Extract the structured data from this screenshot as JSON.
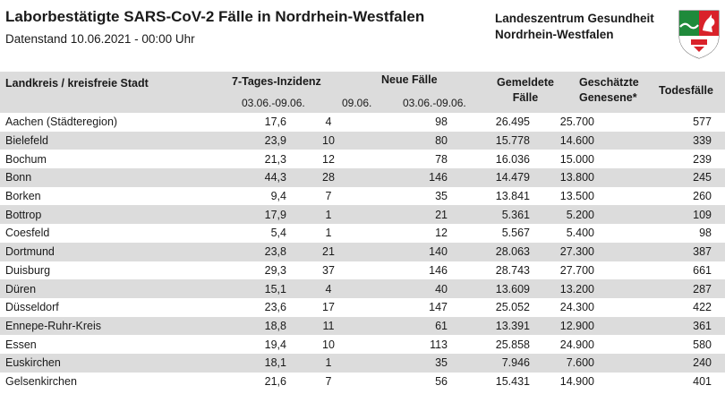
{
  "header": {
    "title": "Laborbestätigte SARS-CoV-2 Fälle in Nordrhein-Westfalen",
    "subtitle": "Datenstand 10.06.2021 - 00:00 Uhr",
    "org_line1": "Landeszentrum Gesundheit",
    "org_line2": "Nordrhein-Westfalen"
  },
  "table": {
    "columns": {
      "district": "Landkreis / kreisfreie Stadt",
      "incidence": "7-Tages-Inzidenz",
      "new_cases": "Neue Fälle",
      "reported_1": "Gemeldete",
      "reported_2": "Fälle",
      "recovered_1": "Geschätzte",
      "recovered_2": "Genesene*",
      "deaths": "Todesfälle"
    },
    "subheaders": {
      "incidence_period": "03.06.-09.06.",
      "new_day": "09.06.",
      "new_period": "03.06.-09.06."
    },
    "rows": [
      {
        "name": "Aachen (Städteregion)",
        "incidence": "17,6",
        "new_day": "4",
        "new_week": "98",
        "reported": "26.495",
        "recovered": "25.700",
        "deaths": "577"
      },
      {
        "name": "Bielefeld",
        "incidence": "23,9",
        "new_day": "10",
        "new_week": "80",
        "reported": "15.778",
        "recovered": "14.600",
        "deaths": "339"
      },
      {
        "name": "Bochum",
        "incidence": "21,3",
        "new_day": "12",
        "new_week": "78",
        "reported": "16.036",
        "recovered": "15.000",
        "deaths": "239"
      },
      {
        "name": "Bonn",
        "incidence": "44,3",
        "new_day": "28",
        "new_week": "146",
        "reported": "14.479",
        "recovered": "13.800",
        "deaths": "245"
      },
      {
        "name": "Borken",
        "incidence": "9,4",
        "new_day": "7",
        "new_week": "35",
        "reported": "13.841",
        "recovered": "13.500",
        "deaths": "260"
      },
      {
        "name": "Bottrop",
        "incidence": "17,9",
        "new_day": "1",
        "new_week": "21",
        "reported": "5.361",
        "recovered": "5.200",
        "deaths": "109"
      },
      {
        "name": "Coesfeld",
        "incidence": "5,4",
        "new_day": "1",
        "new_week": "12",
        "reported": "5.567",
        "recovered": "5.400",
        "deaths": "98"
      },
      {
        "name": "Dortmund",
        "incidence": "23,8",
        "new_day": "21",
        "new_week": "140",
        "reported": "28.063",
        "recovered": "27.300",
        "deaths": "387"
      },
      {
        "name": "Duisburg",
        "incidence": "29,3",
        "new_day": "37",
        "new_week": "146",
        "reported": "28.743",
        "recovered": "27.700",
        "deaths": "661"
      },
      {
        "name": "Düren",
        "incidence": "15,1",
        "new_day": "4",
        "new_week": "40",
        "reported": "13.609",
        "recovered": "13.200",
        "deaths": "287"
      },
      {
        "name": "Düsseldorf",
        "incidence": "23,6",
        "new_day": "17",
        "new_week": "147",
        "reported": "25.052",
        "recovered": "24.300",
        "deaths": "422"
      },
      {
        "name": "Ennepe-Ruhr-Kreis",
        "incidence": "18,8",
        "new_day": "11",
        "new_week": "61",
        "reported": "13.391",
        "recovered": "12.900",
        "deaths": "361"
      },
      {
        "name": "Essen",
        "incidence": "19,4",
        "new_day": "10",
        "new_week": "113",
        "reported": "25.858",
        "recovered": "24.900",
        "deaths": "580"
      },
      {
        "name": "Euskirchen",
        "incidence": "18,1",
        "new_day": "1",
        "new_week": "35",
        "reported": "7.946",
        "recovered": "7.600",
        "deaths": "240"
      },
      {
        "name": "Gelsenkirchen",
        "incidence": "21,6",
        "new_day": "7",
        "new_week": "56",
        "reported": "15.431",
        "recovered": "14.900",
        "deaths": "401"
      }
    ]
  },
  "colors": {
    "stripe": "#dcdcdc",
    "text": "#1a1a1a",
    "crest_green": "#1f8a3b",
    "crest_red": "#d9222a"
  },
  "icons": {
    "crest": "nrw-coat-of-arms-icon"
  }
}
